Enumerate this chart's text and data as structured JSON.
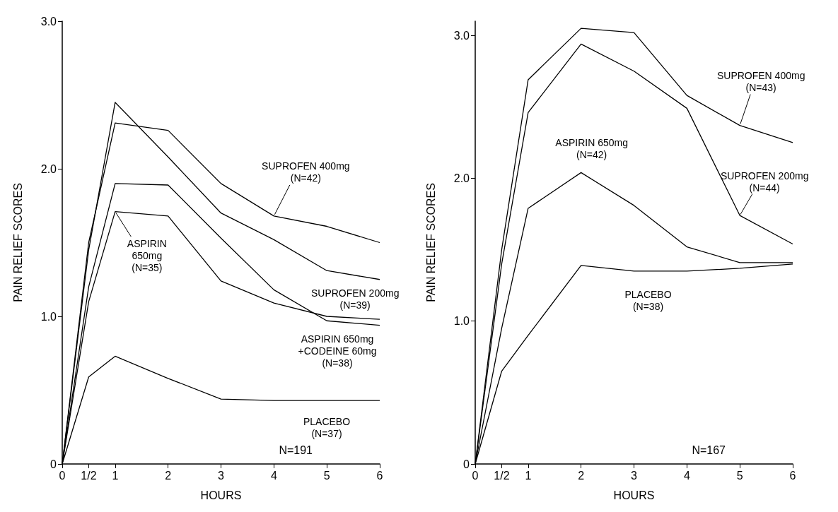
{
  "chart_data": [
    {
      "type": "line",
      "xlabel": "HOURS",
      "ylabel": "PAIN RELIEF SCORES",
      "x": [
        0,
        0.5,
        1,
        2,
        3,
        4,
        5,
        6
      ],
      "xlim": [
        0,
        6
      ],
      "xticks": [
        0,
        {
          "value": 0.5,
          "label": "1/2"
        },
        1,
        2,
        3,
        4,
        5,
        6
      ],
      "ylim": [
        0,
        3
      ],
      "yticks": [
        0,
        {
          "value": 1,
          "label": "1.0"
        },
        {
          "value": 2,
          "label": "2.0"
        },
        {
          "value": 3,
          "label": "3.0"
        }
      ],
      "grid": false,
      "legend": false,
      "marker": "none",
      "line_style": "solid",
      "series": [
        {
          "name": "SUPROFEN 400mg\n(N=42)",
          "color": "#000000",
          "values": [
            0,
            1.5,
            2.31,
            2.26,
            1.9,
            1.68,
            1.61,
            1.5
          ]
        },
        {
          "name": "SUPROFEN 200mg\n(N=39)",
          "color": "#000000",
          "values": [
            0,
            1.45,
            2.45,
            2.08,
            1.7,
            1.52,
            1.31,
            1.25
          ]
        },
        {
          "name": "ASPIRIN 650mg\n+CODEINE 60mg\n(N=38)",
          "color": "#000000",
          "values": [
            0,
            1.2,
            1.9,
            1.89,
            1.53,
            1.18,
            0.97,
            0.94
          ]
        },
        {
          "name": "ASPIRIN\n650mg\n(N=35)",
          "color": "#000000",
          "values": [
            0,
            1.1,
            1.71,
            1.68,
            1.24,
            1.09,
            1.0,
            0.98
          ]
        },
        {
          "name": "PLACEBO\n(N=37)",
          "color": "#000000",
          "values": [
            0,
            0.59,
            0.73,
            0.58,
            0.44,
            0.43,
            0.43,
            0.43
          ]
        }
      ],
      "annotations": [
        "N=191"
      ]
    },
    {
      "type": "line",
      "xlabel": "HOURS",
      "ylabel": "PAIN RELIEF SCORES",
      "x": [
        0,
        0.5,
        1,
        2,
        3,
        4,
        5,
        6
      ],
      "xlim": [
        0,
        6
      ],
      "xticks": [
        0,
        {
          "value": 0.5,
          "label": "1/2"
        },
        1,
        2,
        3,
        4,
        5,
        6
      ],
      "ylim": [
        0,
        3.1
      ],
      "yticks": [
        0,
        {
          "value": 1,
          "label": "1.0"
        },
        {
          "value": 2,
          "label": "2.0"
        },
        {
          "value": 3,
          "label": "3.0"
        }
      ],
      "grid": false,
      "legend": false,
      "marker": "none",
      "line_style": "solid",
      "series": [
        {
          "name": "SUPROFEN 400mg\n(N=43)",
          "color": "#000000",
          "values": [
            0,
            1.5,
            2.69,
            3.05,
            3.02,
            2.58,
            2.37,
            2.25
          ]
        },
        {
          "name": "SUPROFEN 200mg\n(N=44)",
          "color": "#000000",
          "values": [
            0,
            1.4,
            2.46,
            2.94,
            2.75,
            2.49,
            1.74,
            1.54
          ]
        },
        {
          "name": "ASPIRIN 650mg\n(N=42)",
          "color": "#000000",
          "values": [
            0,
            0.95,
            1.79,
            2.04,
            1.81,
            1.52,
            1.41,
            1.41
          ]
        },
        {
          "name": "PLACEBO\n(N=38)",
          "color": "#000000",
          "values": [
            0,
            0.65,
            0.9,
            1.39,
            1.35,
            1.35,
            1.37,
            1.4
          ]
        }
      ],
      "annotations": [
        "N=167"
      ]
    }
  ]
}
